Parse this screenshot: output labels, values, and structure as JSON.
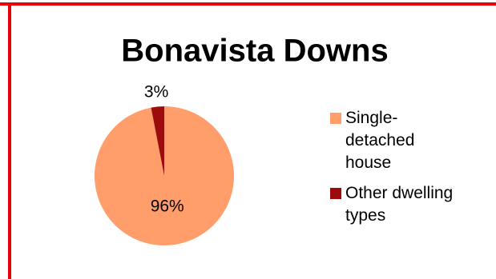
{
  "chart_data": {
    "type": "pie",
    "title": "Bonavista Downs",
    "categories": [
      "Single-detached house",
      "Other dwelling types"
    ],
    "values": [
      96,
      3
    ],
    "value_labels": [
      "96%",
      "3%"
    ],
    "colors": [
      "#FF9E6B",
      "#9C0C0C"
    ],
    "legend": "right"
  }
}
